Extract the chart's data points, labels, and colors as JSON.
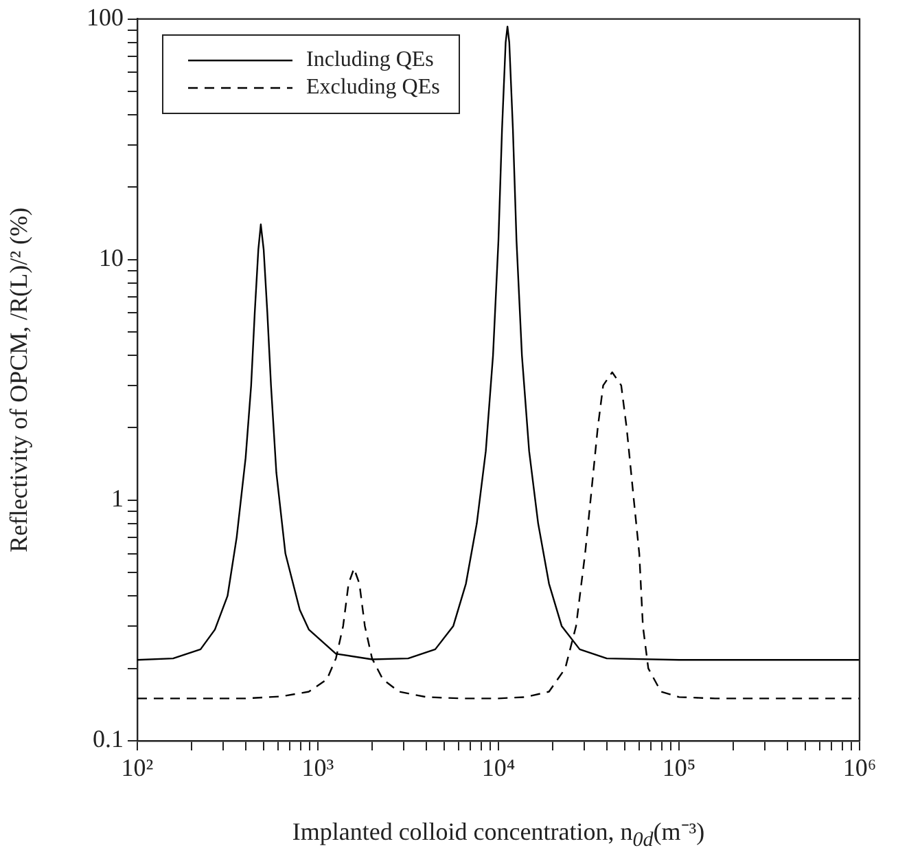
{
  "chart_data": {
    "type": "line",
    "xlabel": "Implanted colloid concentration, n$_{0d}$(m⁻³)",
    "ylabel": "Reflectivity of OPCM, /R(L)/² (%)",
    "log": "xy",
    "legend": "top left",
    "marker": "none",
    "grid": false,
    "xlim": [
      100,
      1000000
    ],
    "ylim": [
      0.1,
      100
    ],
    "xticks": [
      {
        "value": 100,
        "label": "10²"
      },
      {
        "value": 200,
        "label": null
      },
      {
        "value": 300,
        "label": null
      },
      {
        "value": 400,
        "label": null
      },
      {
        "value": 500,
        "label": null
      },
      {
        "value": 600,
        "label": null
      },
      {
        "value": 700,
        "label": null
      },
      {
        "value": 800,
        "label": null
      },
      {
        "value": 900,
        "label": null
      },
      {
        "value": 1000,
        "label": "10³"
      },
      {
        "value": 2000,
        "label": null
      },
      {
        "value": 3000,
        "label": null
      },
      {
        "value": 4000,
        "label": null
      },
      {
        "value": 5000,
        "label": null
      },
      {
        "value": 6000,
        "label": null
      },
      {
        "value": 7000,
        "label": null
      },
      {
        "value": 8000,
        "label": null
      },
      {
        "value": 9000,
        "label": null
      },
      {
        "value": 10000,
        "label": "10⁴"
      },
      {
        "value": 20000,
        "label": null
      },
      {
        "value": 30000,
        "label": null
      },
      {
        "value": 40000,
        "label": null
      },
      {
        "value": 50000,
        "label": null
      },
      {
        "value": 60000,
        "label": null
      },
      {
        "value": 70000,
        "label": null
      },
      {
        "value": 80000,
        "label": null
      },
      {
        "value": 90000,
        "label": null
      },
      {
        "value": 100000,
        "label": "10⁵"
      },
      {
        "value": 200000,
        "label": null
      },
      {
        "value": 300000,
        "label": null
      },
      {
        "value": 400000,
        "label": null
      },
      {
        "value": 500000,
        "label": null
      },
      {
        "value": 600000,
        "label": null
      },
      {
        "value": 700000,
        "label": null
      },
      {
        "value": 800000,
        "label": null
      },
      {
        "value": 900000,
        "label": null
      },
      {
        "value": 1000000,
        "label": "10⁶"
      }
    ],
    "yticks": [
      0.1,
      {
        "value": 0.2,
        "label": null
      },
      {
        "value": 0.3,
        "label": null
      },
      {
        "value": 0.4,
        "label": null
      },
      {
        "value": 0.5,
        "label": null
      },
      {
        "value": 0.6,
        "label": null
      },
      {
        "value": 0.7,
        "label": null
      },
      {
        "value": 0.8,
        "label": null
      },
      {
        "value": 0.9,
        "label": null
      },
      1,
      {
        "value": 2,
        "label": null
      },
      {
        "value": 3,
        "label": null
      },
      {
        "value": 4,
        "label": null
      },
      {
        "value": 5,
        "label": null
      },
      {
        "value": 6,
        "label": null
      },
      {
        "value": 7,
        "label": null
      },
      {
        "value": 8,
        "label": null
      },
      {
        "value": 9,
        "label": null
      },
      10,
      {
        "value": 20,
        "label": null
      },
      {
        "value": 30,
        "label": null
      },
      {
        "value": 40,
        "label": null
      },
      {
        "value": 50,
        "label": null
      },
      {
        "value": 60,
        "label": null
      },
      {
        "value": 70,
        "label": null
      },
      {
        "value": 80,
        "label": null
      },
      {
        "value": 90,
        "label": null
      },
      100
    ],
    "series": [
      {
        "name": "Including QEs",
        "color": "#000000",
        "line_style": "solid",
        "x": [
          100,
          158,
          224,
          269,
          316,
          355,
          398,
          427,
          447,
          468,
          483,
          501,
          525,
          550,
          589,
          661,
          794,
          891,
          1259,
          1995,
          3162,
          4467,
          5623,
          6607,
          7586,
          8511,
          9333,
          10000,
          10471,
          10965,
          11220,
          11482,
          12023,
          12589,
          13490,
          14791,
          16596,
          19055,
          22387,
          28184,
          39811,
          100000,
          1000000
        ],
        "values": [
          0.217,
          0.22,
          0.24,
          0.29,
          0.4,
          0.7,
          1.5,
          3,
          6,
          11,
          14,
          11,
          6,
          3,
          1.3,
          0.6,
          0.35,
          0.29,
          0.23,
          0.218,
          0.22,
          0.24,
          0.3,
          0.45,
          0.8,
          1.6,
          4,
          12,
          35,
          80,
          93,
          80,
          35,
          12,
          4,
          1.6,
          0.8,
          0.45,
          0.3,
          0.24,
          0.22,
          0.217,
          0.217
        ]
      },
      {
        "name": "Excluding QEs",
        "color": "#000000",
        "line_style": "dashed",
        "x": [
          100,
          398,
          631,
          891,
          1122,
          1259,
          1380,
          1479,
          1585,
          1698,
          1820,
          1995,
          2291,
          2818,
          3981,
          6310,
          10000,
          14125,
          19055,
          23442,
          26915,
          30200,
          32359,
          35481,
          38019,
          42658,
          47863,
          51286,
          56234,
          60256,
          63096,
          67608,
          79433,
          100000,
          158489,
          1000000
        ],
        "values": [
          0.15,
          0.15,
          0.153,
          0.16,
          0.18,
          0.22,
          0.3,
          0.45,
          0.52,
          0.45,
          0.3,
          0.22,
          0.18,
          0.16,
          0.152,
          0.15,
          0.15,
          0.152,
          0.16,
          0.2,
          0.3,
          0.6,
          1,
          2,
          3,
          3.4,
          3,
          2,
          1,
          0.6,
          0.3,
          0.2,
          0.16,
          0.152,
          0.15,
          0.15
        ]
      }
    ]
  }
}
